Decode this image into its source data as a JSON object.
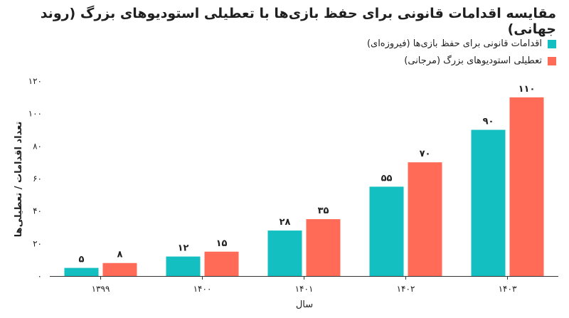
{
  "chart_data": {
    "type": "bar",
    "title": "مقایسه اقدامات قانونی برای حفظ بازی‌ها با تعطیلی استودیوهای بزرگ (روند جهانی)",
    "xlabel": "سال",
    "ylabel": "تعداد اقدامات / تعطیلی‌ها",
    "categories": [
      "۱۳۹۹",
      "۱۴۰۰",
      "۱۴۰۱",
      "۱۴۰۲",
      "۱۴۰۳"
    ],
    "ylim": [
      0,
      120
    ],
    "yticks": [
      "۰",
      "۲۰",
      "۴۰",
      "۶۰",
      "۸۰",
      "۱۰۰",
      "۱۲۰"
    ],
    "ytick_values": [
      0,
      20,
      40,
      60,
      80,
      100,
      120
    ],
    "legend_position": "top-right",
    "grid": false,
    "series": [
      {
        "name": "اقدامات قانونی برای حفظ بازی‌ها (فیروزه‌ای)",
        "color": "#13BFC0",
        "values": [
          5,
          12,
          28,
          55,
          90
        ],
        "labels": [
          "۵",
          "۱۲",
          "۲۸",
          "۵۵",
          "۹۰"
        ]
      },
      {
        "name": "تعطیلی استودیوهای بزرگ (مرجانی)",
        "color": "#FF6B57",
        "values": [
          8,
          15,
          35,
          70,
          110
        ],
        "labels": [
          "۸",
          "۱۵",
          "۳۵",
          "۷۰",
          "۱۱۰"
        ]
      }
    ]
  }
}
